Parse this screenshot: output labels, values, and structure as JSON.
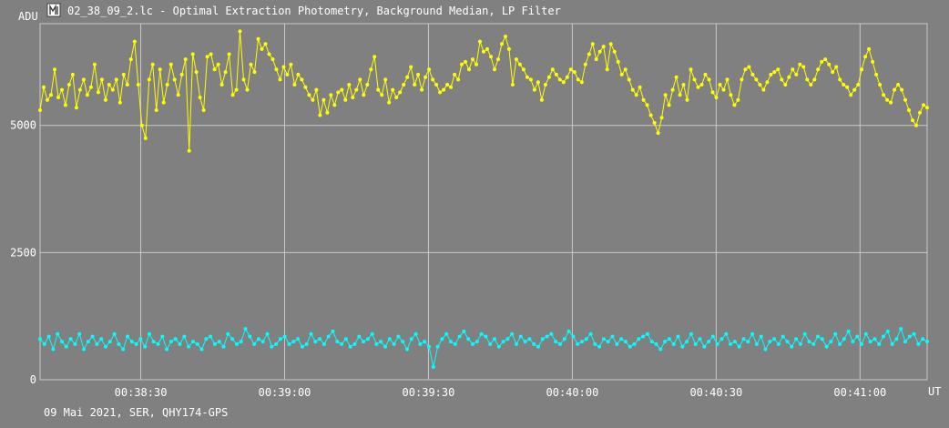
{
  "window": {
    "title": "02_38_09_2.lc - Optimal Extraction Photometry, Background Median, LP Filter",
    "icon": "lightcurve-app-icon"
  },
  "footer": {
    "text": "09 Mai 2021, SER, QHY174-GPS"
  },
  "colors": {
    "background": "#808080",
    "grid": "#c8c8c8",
    "series_target": "#ffff00",
    "series_comparison": "#00ffff",
    "text": "#ffffff"
  },
  "chart_data": {
    "type": "line",
    "title": "02_38_09_2.lc - Optimal Extraction Photometry, Background Median, LP Filter",
    "ylabel": "ADU",
    "xlabel": "UT",
    "ylim": [
      0,
      7000
    ],
    "xlim": [
      "00:38:09",
      "00:41:14"
    ],
    "grid": true,
    "markers": true,
    "y_ticks": [
      {
        "value": 0,
        "label": "0"
      },
      {
        "value": 2500,
        "label": "2500"
      },
      {
        "value": 5000,
        "label": "5000"
      }
    ],
    "x_ticks": [
      {
        "value": "00:38:30",
        "label": "00:38:30"
      },
      {
        "value": "00:39:00",
        "label": "00:39:00"
      },
      {
        "value": "00:39:30",
        "label": "00:39:30"
      },
      {
        "value": "00:40:00",
        "label": "00:40:00"
      },
      {
        "value": "00:40:30",
        "label": "00:40:30"
      },
      {
        "value": "00:41:00",
        "label": "00:41:00"
      }
    ],
    "series": [
      {
        "color": "#ffff00",
        "x_start": "00:38:09",
        "x_end": "00:41:14",
        "values": [
          5300,
          5750,
          5500,
          5600,
          6100,
          5550,
          5700,
          5400,
          5800,
          6000,
          5350,
          5700,
          5900,
          5600,
          5750,
          6200,
          5650,
          5900,
          5500,
          5800,
          5700,
          5900,
          5450,
          6000,
          5800,
          6300,
          6650,
          5800,
          5000,
          4750,
          5900,
          6200,
          5300,
          6100,
          5450,
          5800,
          6200,
          5900,
          5600,
          6000,
          6300,
          4500,
          6400,
          6050,
          5550,
          5300,
          6350,
          6400,
          6100,
          6200,
          5800,
          6050,
          6400,
          5600,
          5700,
          6850,
          5900,
          5700,
          6200,
          6050,
          6700,
          6500,
          6600,
          6400,
          6300,
          6100,
          5900,
          6150,
          6000,
          6200,
          5800,
          6000,
          5900,
          5750,
          5600,
          5500,
          5700,
          5200,
          5500,
          5250,
          5600,
          5400,
          5650,
          5700,
          5500,
          5800,
          5550,
          5700,
          5900,
          5600,
          5800,
          6100,
          6350,
          5700,
          5600,
          5900,
          5450,
          5700,
          5550,
          5650,
          5800,
          5950,
          6150,
          5800,
          6000,
          5700,
          5950,
          6100,
          5900,
          5800,
          5650,
          5700,
          5800,
          5750,
          6000,
          5900,
          6200,
          6250,
          6100,
          6300,
          6200,
          6650,
          6450,
          6500,
          6350,
          6100,
          6300,
          6600,
          6750,
          6500,
          5800,
          6300,
          6200,
          6100,
          5950,
          5900,
          5700,
          5850,
          5500,
          5800,
          5950,
          6100,
          6000,
          5900,
          5850,
          5950,
          6100,
          6050,
          5900,
          5850,
          6200,
          6400,
          6600,
          6300,
          6450,
          6550,
          6100,
          6600,
          6450,
          6250,
          6000,
          6100,
          5900,
          5700,
          5600,
          5750,
          5500,
          5400,
          5200,
          5050,
          4850,
          5150,
          5600,
          5400,
          5700,
          5950,
          5600,
          5800,
          5500,
          6100,
          5900,
          5750,
          5800,
          6000,
          5900,
          5650,
          5550,
          5800,
          5700,
          5900,
          5600,
          5400,
          5500,
          5900,
          6100,
          6150,
          6000,
          5900,
          5800,
          5700,
          5850,
          6000,
          6050,
          6100,
          5900,
          5800,
          5950,
          6100,
          6000,
          6200,
          6150,
          5900,
          5800,
          5900,
          6100,
          6250,
          6300,
          6200,
          6050,
          6150,
          5900,
          5800,
          5750,
          5600,
          5700,
          5800,
          6100,
          6350,
          6500,
          6250,
          6000,
          5800,
          5600,
          5500,
          5450,
          5700,
          5800,
          5700,
          5500,
          5300,
          5100,
          5000,
          5250,
          5400,
          5350
        ]
      },
      {
        "color": "#00ffff",
        "x_start": "00:38:09",
        "x_end": "00:41:14",
        "values": [
          800,
          700,
          850,
          600,
          900,
          750,
          650,
          800,
          700,
          900,
          600,
          750,
          850,
          700,
          800,
          650,
          750,
          900,
          700,
          600,
          850,
          750,
          700,
          800,
          650,
          900,
          750,
          700,
          850,
          600,
          750,
          800,
          700,
          850,
          650,
          750,
          700,
          600,
          800,
          850,
          700,
          750,
          650,
          900,
          800,
          700,
          750,
          1000,
          850,
          700,
          800,
          750,
          900,
          650,
          700,
          800,
          850,
          700,
          750,
          800,
          650,
          700,
          900,
          750,
          800,
          700,
          850,
          950,
          750,
          700,
          800,
          650,
          700,
          850,
          750,
          800,
          900,
          700,
          750,
          650,
          800,
          700,
          850,
          750,
          600,
          800,
          900,
          700,
          750,
          650,
          250,
          650,
          800,
          900,
          750,
          700,
          850,
          950,
          800,
          700,
          750,
          900,
          850,
          700,
          800,
          650,
          750,
          800,
          900,
          700,
          850,
          750,
          800,
          700,
          650,
          800,
          850,
          900,
          750,
          700,
          800,
          950,
          850,
          700,
          750,
          800,
          900,
          700,
          650,
          800,
          750,
          850,
          700,
          800,
          750,
          650,
          700,
          800,
          850,
          900,
          750,
          700,
          600,
          750,
          800,
          700,
          850,
          650,
          750,
          900,
          700,
          800,
          650,
          750,
          850,
          700,
          800,
          900,
          700,
          750,
          650,
          800,
          750,
          900,
          700,
          850,
          600,
          750,
          800,
          700,
          850,
          750,
          650,
          800,
          700,
          900,
          750,
          700,
          850,
          800,
          650,
          750,
          900,
          700,
          800,
          950,
          750,
          850,
          700,
          900,
          750,
          800,
          700,
          850,
          950,
          700,
          800,
          1000,
          750,
          850,
          900,
          700,
          800,
          750
        ]
      }
    ]
  }
}
